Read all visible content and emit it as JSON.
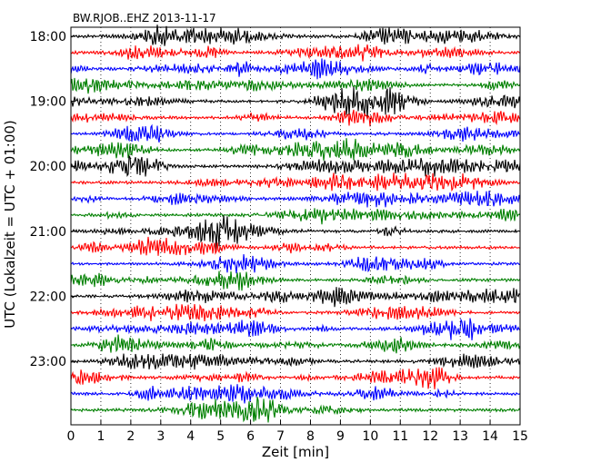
{
  "chart_data": {
    "type": "line",
    "title": "BW.RJOB..EHZ 2013-11-17",
    "xlabel": "Zeit  [min]",
    "ylabel": "UTC (Lokalzeit = UTC + 01:00)",
    "xlim": [
      0,
      15
    ],
    "xticks": [
      "0",
      "1",
      "2",
      "3",
      "4",
      "5",
      "6",
      "7",
      "8",
      "9",
      "10",
      "11",
      "12",
      "13",
      "14",
      "15"
    ],
    "yticks": [
      "18:00",
      "19:00",
      "20:00",
      "21:00",
      "22:00",
      "23:00"
    ],
    "trace_start_times": [
      "18:00",
      "18:15",
      "18:30",
      "18:45",
      "19:00",
      "19:15",
      "19:30",
      "19:45",
      "20:00",
      "20:15",
      "20:30",
      "20:45",
      "21:00",
      "21:15",
      "21:30",
      "21:45",
      "22:00",
      "22:15",
      "22:30",
      "22:45",
      "23:00",
      "23:15",
      "23:30",
      "23:45"
    ],
    "trace_colors": [
      "#000000",
      "#ff0000",
      "#0000ff",
      "#008000"
    ],
    "grid": "vertical dotted at each minute"
  }
}
